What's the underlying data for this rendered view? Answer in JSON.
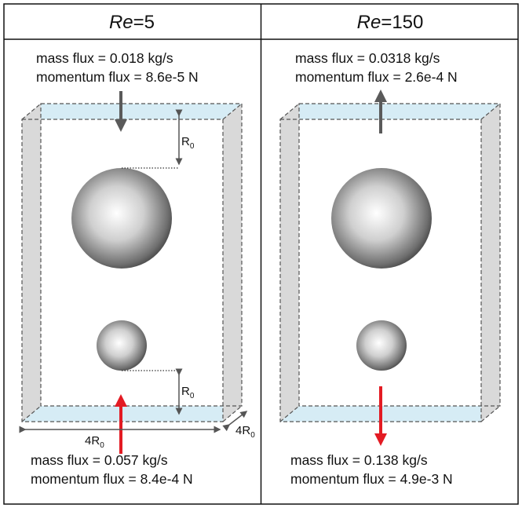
{
  "panels": [
    {
      "title_italic": "Re",
      "title_rest": "=5",
      "top_mass": "mass flux = 0.018 kg/s",
      "top_momentum": "momentum flux = 8.6e-5 N",
      "bottom_mass": "mass flux = 0.057 kg/s",
      "bottom_momentum": "momentum flux = 8.4e-4 N",
      "top_flow": "down",
      "bottom_flow": "up"
    },
    {
      "title_italic": "Re",
      "title_rest": "=150",
      "top_mass": "mass flux = 0.0318 kg/s",
      "top_momentum": "momentum flux = 2.6e-4 N",
      "bottom_mass": "mass flux = 0.138 kg/s",
      "bottom_momentum": "momentum flux = 4.9e-3 N",
      "top_flow": "up",
      "bottom_flow": "down"
    }
  ],
  "dimensions": {
    "r_label": "R",
    "r_sub": "0",
    "width_label": "4R",
    "width_sub": "0",
    "depth_label": "4R",
    "depth_sub": "0"
  },
  "colors": {
    "top_arrow": "#5a5a5a",
    "bottom_arrow": "#e31b23",
    "water_face": "#d6ecf5",
    "side_face": "#d9d9d9"
  }
}
